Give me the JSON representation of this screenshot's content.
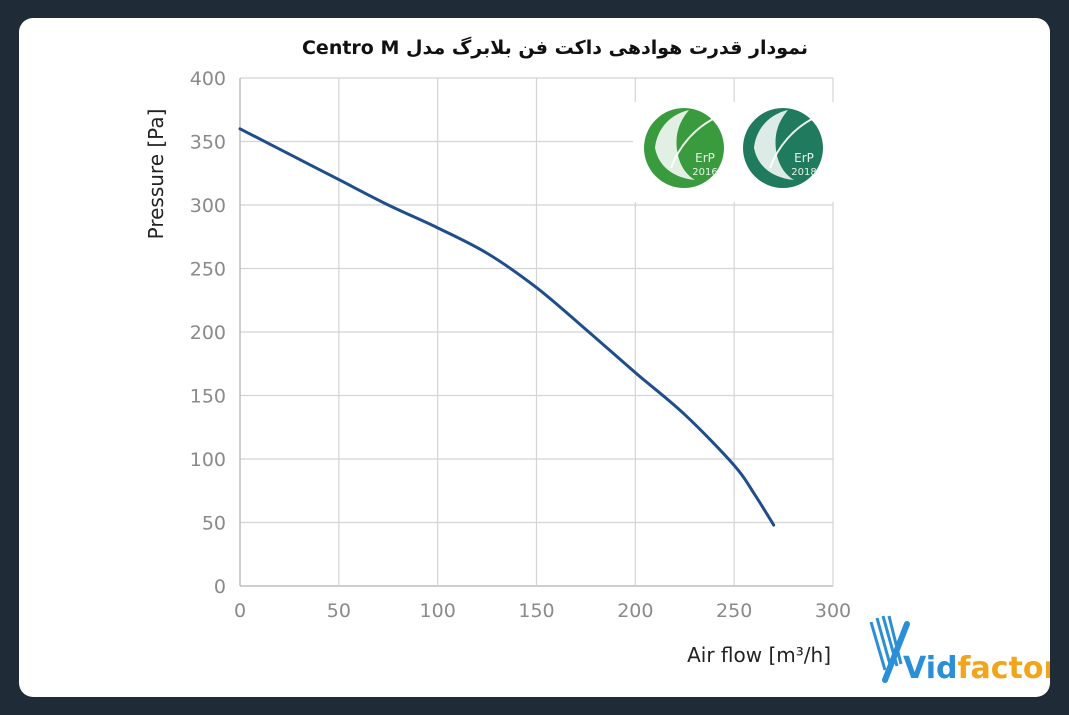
{
  "chart_data": {
    "type": "line",
    "title": "نمودار قدرت هوادهی داکت فن بلابرگ مدل Centro M",
    "xlabel": "Air flow [m³/h]",
    "ylabel": "Pressure [Pa]",
    "xlim": [
      0,
      300
    ],
    "ylim": [
      0,
      400
    ],
    "xticks": [
      "0",
      "50",
      "100",
      "150",
      "200",
      "250",
      "300"
    ],
    "yticks": [
      "0",
      "50",
      "100",
      "150",
      "200",
      "250",
      "300",
      "350",
      "400"
    ],
    "grid": true,
    "series": [
      {
        "x": [
          0,
          25,
          50,
          75,
          100,
          125,
          150,
          175,
          200,
          225,
          250,
          260,
          270
        ],
        "y": [
          360,
          340,
          320,
          300,
          282,
          262,
          235,
          202,
          168,
          135,
          95,
          73,
          48
        ],
        "color": "#1f4e8a"
      }
    ]
  },
  "badges": [
    {
      "label": "ErP",
      "year": "2016",
      "color": "#3a9b3e"
    },
    {
      "label": "ErP",
      "year": "2018",
      "color": "#1f7a5e"
    }
  ],
  "brand": {
    "part1": "Vid",
    "part2": "factor",
    "color1": "#2a8fd6",
    "color2": "#f2a51a"
  }
}
